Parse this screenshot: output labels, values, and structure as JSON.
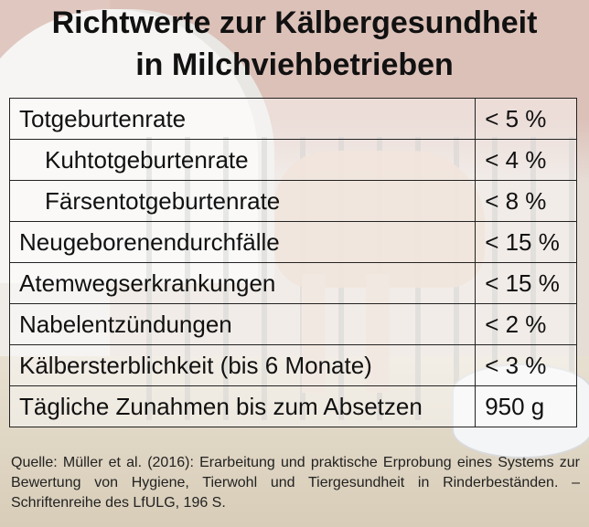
{
  "title": {
    "line1": "Richtwerte zur Kälbergesundheit",
    "line2": "in Milchviehbetrieben"
  },
  "table": {
    "rows": [
      {
        "label": "Totgeburtenrate",
        "value": "< 5 %"
      },
      {
        "label": "Kuhtotgeburtenrate",
        "value": "< 4 %"
      },
      {
        "label": "Färsentotgeburtenrate",
        "value": "< 8 %"
      },
      {
        "label": "Neugeborenendurchfälle",
        "value": "< 15 %"
      },
      {
        "label": "Atemwegserkrankungen",
        "value": "< 15 %"
      },
      {
        "label": "Nabelentzündungen",
        "value": "< 2 %"
      },
      {
        "label": "Kälbersterblichkeit (bis 6 Monate)",
        "value": "< 3 %"
      },
      {
        "label": "Tägliche Zunahmen bis zum Absetzen",
        "value": "950 g"
      }
    ]
  },
  "source": {
    "text": "Quelle: Müller et al. (2016): Erarbeitung und praktische Erprobung eines Systems zur Bewertung von Hygiene, Tierwohl und Tiergesundheit in Rinderbeständen. – Schriftenreihe des LfULG, 196 S."
  }
}
